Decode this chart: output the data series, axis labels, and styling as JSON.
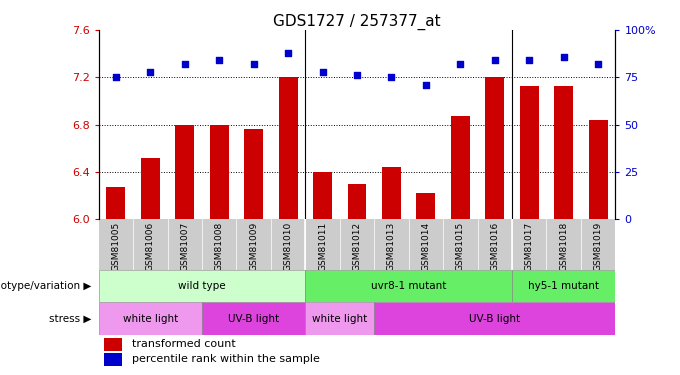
{
  "title": "GDS1727 / 257377_at",
  "samples": [
    "GSM81005",
    "GSM81006",
    "GSM81007",
    "GSM81008",
    "GSM81009",
    "GSM81010",
    "GSM81011",
    "GSM81012",
    "GSM81013",
    "GSM81014",
    "GSM81015",
    "GSM81016",
    "GSM81017",
    "GSM81018",
    "GSM81019"
  ],
  "bar_values": [
    6.27,
    6.52,
    6.8,
    6.8,
    6.76,
    7.2,
    6.4,
    6.3,
    6.44,
    6.22,
    6.87,
    7.2,
    7.13,
    7.13,
    6.84
  ],
  "dot_values": [
    75,
    78,
    82,
    84,
    82,
    88,
    78,
    76,
    75,
    71,
    82,
    84,
    84,
    86,
    82
  ],
  "ylim_left": [
    6.0,
    7.6
  ],
  "ylim_right": [
    0,
    100
  ],
  "yticks_left": [
    6.0,
    6.4,
    6.8,
    7.2,
    7.6
  ],
  "yticks_right": [
    0,
    25,
    50,
    75,
    100
  ],
  "ytick_labels_right": [
    "0",
    "25",
    "50",
    "75",
    "100%"
  ],
  "hlines": [
    6.4,
    6.8,
    7.2
  ],
  "bar_color": "#cc0000",
  "dot_color": "#0000cc",
  "bar_width": 0.55,
  "geno_groups": [
    {
      "label": "wild type",
      "start": 0,
      "end": 5,
      "color": "#ccffcc"
    },
    {
      "label": "uvr8-1 mutant",
      "start": 6,
      "end": 11,
      "color": "#66ee66"
    },
    {
      "label": "hy5-1 mutant",
      "start": 12,
      "end": 14,
      "color": "#66ee66"
    }
  ],
  "stress_groups": [
    {
      "label": "white light",
      "start": 0,
      "end": 2,
      "color": "#ee99ee"
    },
    {
      "label": "UV-B light",
      "start": 3,
      "end": 5,
      "color": "#dd44dd"
    },
    {
      "label": "white light",
      "start": 6,
      "end": 7,
      "color": "#ee99ee"
    },
    {
      "label": "UV-B light",
      "start": 8,
      "end": 14,
      "color": "#dd44dd"
    }
  ],
  "legend_bar_label": "transformed count",
  "legend_dot_label": "percentile rank within the sample",
  "xlabel_genotype": "genotype/variation",
  "xlabel_stress": "stress",
  "sep_lines": [
    5.5,
    11.5
  ],
  "tick_bg_color": "#cccccc"
}
